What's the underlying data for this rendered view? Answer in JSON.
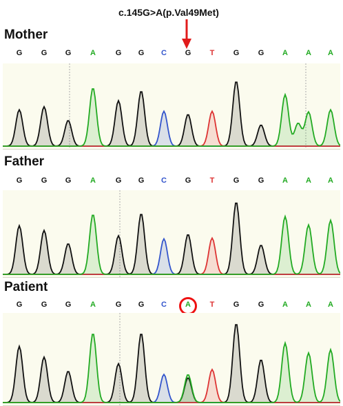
{
  "annotation": {
    "label": "c.145G>A(p.Val49Met)",
    "arrow_color": "#e11b1b"
  },
  "colors": {
    "A": "#22aa22",
    "C": "#3355cc",
    "G": "#111111",
    "T": "#dd3333",
    "panel_bg": "#fbfbee"
  },
  "tracks": [
    {
      "label": "Mother",
      "bases": [
        "G",
        "G",
        "G",
        "A",
        "G",
        "G",
        "C",
        "G",
        "T",
        "G",
        "G",
        "A",
        "A",
        "A"
      ],
      "peaks": [
        {
          "base": "G",
          "h": 0.48
        },
        {
          "base": "G",
          "h": 0.52
        },
        {
          "base": "G",
          "h": 0.34
        },
        {
          "base": "A",
          "h": 0.77
        },
        {
          "base": "G",
          "h": 0.6
        },
        {
          "base": "G",
          "h": 0.73
        },
        {
          "base": "C",
          "h": 0.46
        },
        {
          "base": "G",
          "h": 0.42
        },
        {
          "base": "T",
          "h": 0.46
        },
        {
          "base": "G",
          "h": 0.86
        },
        {
          "base": "G",
          "h": 0.28
        },
        {
          "base": "A",
          "h": 0.68
        },
        {
          "base": "A",
          "h": 0.45
        },
        {
          "base": "A",
          "h": 0.48
        }
      ],
      "extra_peaks": [
        {
          "base": "A",
          "pos": 11.55,
          "h": 0.3
        }
      ]
    },
    {
      "label": "Father",
      "bases": [
        "G",
        "G",
        "G",
        "A",
        "G",
        "G",
        "C",
        "G",
        "T",
        "G",
        "G",
        "A",
        "A",
        "A"
      ],
      "peaks": [
        {
          "base": "G",
          "h": 0.63
        },
        {
          "base": "G",
          "h": 0.57
        },
        {
          "base": "G",
          "h": 0.4
        },
        {
          "base": "A",
          "h": 0.78
        },
        {
          "base": "G",
          "h": 0.5
        },
        {
          "base": "G",
          "h": 0.79
        },
        {
          "base": "C",
          "h": 0.46
        },
        {
          "base": "G",
          "h": 0.52
        },
        {
          "base": "T",
          "h": 0.47
        },
        {
          "base": "G",
          "h": 0.94
        },
        {
          "base": "G",
          "h": 0.38
        },
        {
          "base": "A",
          "h": 0.75
        },
        {
          "base": "A",
          "h": 0.64
        },
        {
          "base": "A",
          "h": 0.7
        }
      ],
      "extra_peaks": []
    },
    {
      "label": "Patient",
      "bases": [
        "G",
        "G",
        "G",
        "A",
        "G",
        "G",
        "C",
        "A",
        "T",
        "G",
        "G",
        "A",
        "A",
        "A"
      ],
      "highlight_index": 7,
      "peaks": [
        {
          "base": "G",
          "h": 0.68
        },
        {
          "base": "G",
          "h": 0.55
        },
        {
          "base": "G",
          "h": 0.38
        },
        {
          "base": "A",
          "h": 0.84
        },
        {
          "base": "G",
          "h": 0.47
        },
        {
          "base": "G",
          "h": 0.84
        },
        {
          "base": "C",
          "h": 0.34
        },
        {
          "base": "A",
          "h": 0.34
        },
        {
          "base": "T",
          "h": 0.4
        },
        {
          "base": "G",
          "h": 0.96
        },
        {
          "base": "G",
          "h": 0.52
        },
        {
          "base": "A",
          "h": 0.72
        },
        {
          "base": "A",
          "h": 0.6
        },
        {
          "base": "A",
          "h": 0.64
        }
      ],
      "extra_peaks": [
        {
          "base": "G",
          "pos": 7.0,
          "h": 0.3
        }
      ]
    }
  ]
}
